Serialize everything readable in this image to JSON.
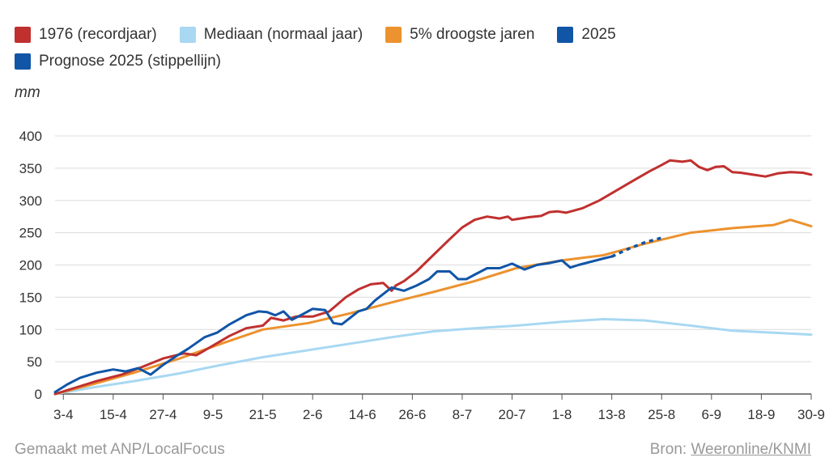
{
  "legend": {
    "items": [
      {
        "label": "1976 (recordjaar)",
        "color": "#c0302f"
      },
      {
        "label": "Mediaan (normaal jaar)",
        "color": "#a8d8f2"
      },
      {
        "label": "5% droogste jaren",
        "color": "#ec922e"
      },
      {
        "label": "2025",
        "color": "#1155a7"
      },
      {
        "label": "Prognose 2025 (stippellijn)",
        "color": "#1155a7"
      }
    ]
  },
  "footer": {
    "made_with": "Gemaakt met ANP/LocalFocus",
    "source_prefix": "Bron:",
    "source_link": "Weeronline/KNMI"
  },
  "chart_data": {
    "type": "line",
    "ylabel": "mm",
    "ylim": [
      0,
      400
    ],
    "yticks": [
      0,
      50,
      100,
      150,
      200,
      250,
      300,
      350,
      400
    ],
    "grid": true,
    "legend_position": "top",
    "x_type": "date",
    "xlim": [
      "1-4",
      "30-9"
    ],
    "xticks": [
      "3-4",
      "15-4",
      "27-4",
      "9-5",
      "21-5",
      "2-6",
      "14-6",
      "26-6",
      "8-7",
      "20-7",
      "1-8",
      "13-8",
      "25-8",
      "6-9",
      "18-9",
      "30-9"
    ],
    "series": [
      {
        "name": "1976 (recordjaar)",
        "color": "#c0302f",
        "style": "solid",
        "x": [
          "1-4",
          "6-4",
          "11-4",
          "17-4",
          "22-4",
          "27-4",
          "2-5",
          "5-5",
          "9-5",
          "13-5",
          "17-5",
          "21-5",
          "23-5",
          "26-5",
          "29-5",
          "2-6",
          "6-6",
          "10-6",
          "13-6",
          "16-6",
          "19-6",
          "21-6",
          "22-6",
          "24-6",
          "27-6",
          "1-7",
          "5-7",
          "8-7",
          "11-7",
          "14-7",
          "17-7",
          "19-7",
          "20-7",
          "24-7",
          "27-7",
          "29-7",
          "31-7",
          "2-8",
          "6-8",
          "10-8",
          "14-8",
          "18-8",
          "22-8",
          "25-8",
          "27-8",
          "30-8",
          "1-9",
          "3-9",
          "5-9",
          "7-9",
          "9-9",
          "11-9",
          "13-9",
          "16-9",
          "19-9",
          "22-9",
          "25-9",
          "28-9",
          "30-9"
        ],
        "values": [
          0,
          10,
          20,
          30,
          42,
          55,
          63,
          60,
          75,
          90,
          102,
          106,
          118,
          114,
          120,
          120,
          128,
          150,
          162,
          170,
          172,
          160,
          168,
          175,
          190,
          215,
          240,
          258,
          270,
          275,
          272,
          275,
          270,
          274,
          276,
          282,
          283,
          281,
          288,
          300,
          315,
          330,
          345,
          355,
          362,
          360,
          362,
          352,
          347,
          352,
          353,
          344,
          343,
          340,
          337,
          342,
          344,
          343,
          340
        ]
      },
      {
        "name": "Mediaan (normaal jaar)",
        "color": "#a8d8f2",
        "style": "solid",
        "x": [
          "1-4",
          "10-4",
          "20-4",
          "1-5",
          "11-5",
          "21-5",
          "1-6",
          "11-6",
          "21-6",
          "1-7",
          "11-7",
          "21-7",
          "1-8",
          "11-8",
          "21-8",
          "1-9",
          "11-9",
          "21-9",
          "30-9"
        ],
        "values": [
          0,
          10,
          20,
          32,
          45,
          57,
          68,
          78,
          88,
          97,
          102,
          106,
          112,
          116,
          114,
          106,
          98,
          95,
          92
        ]
      },
      {
        "name": "5% droogste jaren",
        "color": "#ec922e",
        "style": "solid",
        "x": [
          "1-4",
          "10-4",
          "20-4",
          "1-5",
          "11-5",
          "21-5",
          "1-6",
          "11-6",
          "21-6",
          "1-7",
          "11-7",
          "21-7",
          "1-8",
          "11-8",
          "21-8",
          "1-9",
          "11-9",
          "21-9",
          "25-9",
          "30-9"
        ],
        "values": [
          0,
          15,
          33,
          55,
          78,
          100,
          110,
          125,
          142,
          158,
          175,
          195,
          207,
          215,
          233,
          250,
          257,
          262,
          270,
          260
        ]
      },
      {
        "name": "2025",
        "color": "#1155a7",
        "style": "solid",
        "x": [
          "1-4",
          "4-4",
          "7-4",
          "11-4",
          "15-4",
          "18-4",
          "21-4",
          "24-4",
          "27-4",
          "30-4",
          "3-5",
          "7-5",
          "10-5",
          "13-5",
          "17-5",
          "20-5",
          "22-5",
          "24-5",
          "26-5",
          "28-5",
          "31-5",
          "2-6",
          "5-6",
          "7-6",
          "9-6",
          "11-6",
          "13-6",
          "15-6",
          "17-6",
          "19-6",
          "21-6",
          "24-6",
          "27-6",
          "30-6",
          "2-7",
          "5-7",
          "7-7",
          "9-7",
          "11-7",
          "14-7",
          "17-7",
          "20-7",
          "23-7",
          "26-7",
          "29-7",
          "1-8",
          "3-8",
          "5-8",
          "8-8",
          "11-8",
          "13-8"
        ],
        "values": [
          3,
          15,
          25,
          33,
          38,
          35,
          40,
          30,
          45,
          58,
          70,
          88,
          95,
          108,
          122,
          128,
          127,
          122,
          128,
          115,
          125,
          132,
          130,
          110,
          108,
          118,
          128,
          132,
          145,
          155,
          165,
          160,
          168,
          178,
          190,
          190,
          178,
          178,
          185,
          195,
          195,
          202,
          193,
          200,
          203,
          207,
          196,
          200,
          205,
          210,
          213
        ]
      },
      {
        "name": "Prognose 2025 (stippellijn)",
        "color": "#1155a7",
        "style": "dotted",
        "x": [
          "13-8",
          "17-8",
          "21-8",
          "25-8"
        ],
        "values": [
          213,
          225,
          235,
          242
        ]
      }
    ]
  }
}
